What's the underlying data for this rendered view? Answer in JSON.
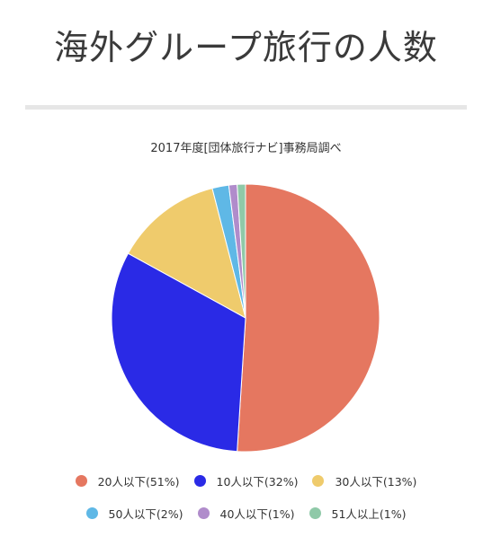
{
  "page": {
    "title": "海外グループ旅行の人数"
  },
  "chart_data": {
    "type": "pie",
    "title": "2017年度[団体旅行ナビ]事務局調べ",
    "categories": [
      "20人以下",
      "10人以下",
      "30人以下",
      "50人以下",
      "40人以下",
      "51人以上"
    ],
    "values": [
      51,
      32,
      13,
      2,
      1,
      1
    ],
    "colors": [
      "#E57760",
      "#2A2AE6",
      "#EFCB6C",
      "#5FB8E6",
      "#B08CCB",
      "#8FC9A8"
    ],
    "legend_labels": [
      "20人以下(51%)",
      "10人以下(32%)",
      "30人以下(13%)",
      "50人以下(2%)",
      "40人以下(1%)",
      "51人以上(1%)"
    ],
    "legend_position": "bottom",
    "start_angle": "12 o'clock",
    "direction": "clockwise"
  }
}
